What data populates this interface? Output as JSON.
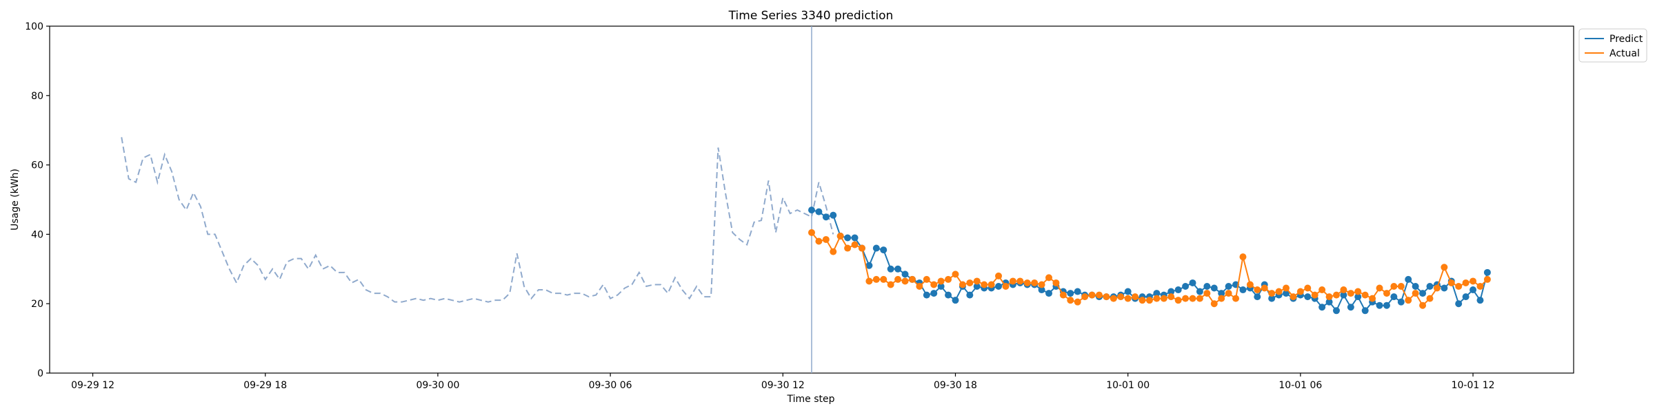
{
  "chart_data": {
    "type": "line",
    "title": "Time Series 3340 prediction",
    "xlabel": "Time step",
    "ylabel": "Usage (kWh)",
    "ylim": [
      0,
      100
    ],
    "yticks": [
      0,
      20,
      40,
      60,
      80,
      100
    ],
    "xlim": [
      "2024-09-29T10:30",
      "2024-10-01T15:30"
    ],
    "xticks": [
      {
        "t": "2024-09-29T12:00",
        "label": "09-29 12"
      },
      {
        "t": "2024-09-29T18:00",
        "label": "09-29 18"
      },
      {
        "t": "2024-09-30T00:00",
        "label": "09-30 00"
      },
      {
        "t": "2024-09-30T06:00",
        "label": "09-30 06"
      },
      {
        "t": "2024-09-30T12:00",
        "label": "09-30 12"
      },
      {
        "t": "2024-09-30T18:00",
        "label": "09-30 18"
      },
      {
        "t": "2024-10-01T00:00",
        "label": "10-01 00"
      },
      {
        "t": "2024-10-01T06:00",
        "label": "10-01 06"
      },
      {
        "t": "2024-10-01T12:00",
        "label": "10-01 12"
      }
    ],
    "vline": "2024-09-30T13:00",
    "history": {
      "start": "2024-09-29T13:00",
      "step_minutes": 15,
      "style": "dashed",
      "color": "#8fa9cc",
      "values": [
        68,
        56,
        55,
        62,
        63,
        55,
        63,
        58,
        50,
        47,
        52,
        48,
        40,
        40,
        35,
        30,
        26,
        31,
        33,
        31,
        27,
        30,
        27,
        32,
        33,
        33,
        30,
        34,
        30,
        31,
        29,
        29,
        26,
        27,
        24,
        23,
        23,
        22,
        20.5,
        20.5,
        21,
        21.5,
        21,
        21.5,
        21,
        21.5,
        21,
        20.5,
        21,
        21.5,
        21,
        20.5,
        21,
        21,
        23,
        34.5,
        25,
        21.5,
        24,
        24,
        23,
        23,
        22.5,
        23,
        23,
        22,
        22.5,
        25.5,
        21.5,
        22.5,
        24.5,
        25.5,
        29,
        25,
        25.5,
        25.5,
        23,
        27.5,
        24,
        21.5,
        25,
        22,
        22,
        65,
        52,
        40.5,
        38.5,
        37,
        43.5,
        44,
        55.5,
        40.5,
        50.5,
        46,
        47,
        46,
        45,
        55,
        48,
        40
      ]
    },
    "series": [
      {
        "name": "Predict",
        "color": "#1f77b4",
        "start": "2024-09-30T13:00",
        "step_minutes": 15,
        "values": [
          47,
          46.5,
          45,
          45.5,
          39.5,
          39,
          39,
          36,
          31,
          36,
          35.5,
          30,
          30,
          28.5,
          27,
          26,
          22.5,
          23,
          25,
          22.5,
          21,
          25,
          22.5,
          25,
          24.5,
          24.5,
          25,
          26,
          25.5,
          26,
          25.5,
          25.5,
          24,
          23,
          25,
          23.5,
          23,
          23.5,
          22.5,
          22.5,
          22,
          22,
          22,
          22.5,
          23.5,
          21.5,
          22,
          22,
          23,
          22.5,
          23.5,
          24,
          25,
          26,
          23.5,
          25,
          24.5,
          23,
          25,
          25.5,
          24,
          24.5,
          22,
          25.5,
          21.5,
          22.5,
          23,
          21.5,
          22.5,
          22,
          21.5,
          19,
          20.5,
          18,
          22.5,
          19,
          22,
          18,
          20.5,
          19.5,
          19.5,
          22,
          20.5,
          27,
          25,
          23,
          25,
          25.5,
          24.5,
          26.5,
          20,
          22,
          24,
          21,
          29
        ]
      },
      {
        "name": "Actual",
        "color": "#ff7f0e",
        "start": "2024-09-30T13:00",
        "step_minutes": 15,
        "values": [
          40.5,
          38,
          38.5,
          35,
          39.5,
          36,
          37,
          36,
          26.5,
          27,
          27,
          25.5,
          27,
          26.5,
          27,
          25,
          27,
          25.5,
          26.5,
          27,
          28.5,
          25.5,
          26,
          26.5,
          25.5,
          25.5,
          28,
          25,
          26.5,
          26.5,
          26,
          26,
          25.5,
          27.5,
          26,
          22.5,
          21,
          20.5,
          22,
          22.5,
          22.5,
          22,
          21.5,
          22,
          21.5,
          22,
          21,
          21,
          21.5,
          21.5,
          22,
          21,
          21.5,
          21.5,
          21.5,
          23,
          20,
          21.5,
          23,
          21.5,
          33.5,
          25.5,
          24,
          24.5,
          23,
          23.5,
          24.5,
          22,
          23.5,
          24.5,
          22.5,
          24,
          22,
          22.5,
          24,
          23,
          23.5,
          22.5,
          21.5,
          24.5,
          23,
          25,
          25,
          21,
          23,
          19.5,
          21.5,
          24.5,
          30.5,
          26,
          25,
          26,
          26.5,
          25,
          27
        ]
      }
    ],
    "legend": {
      "placement": "outside-top-right"
    },
    "grid": false
  }
}
